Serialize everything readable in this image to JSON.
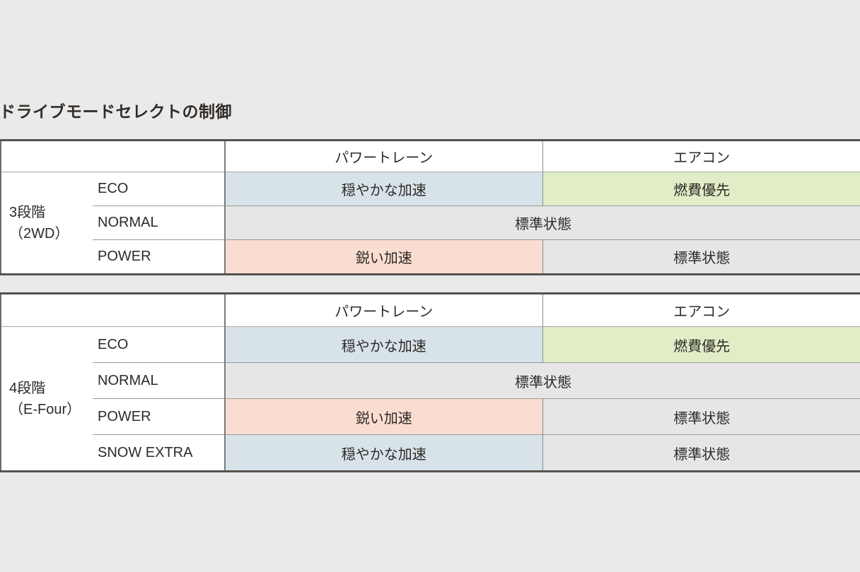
{
  "page": {
    "title": "ドライブモードセレクトの制御",
    "background_color": "#eaeaea"
  },
  "colors": {
    "cell_blue": "#d7e2e9",
    "cell_green": "#e0edc7",
    "cell_peach": "#f9ddd1",
    "cell_gray": "#e6e6e6",
    "outer_border": "#56524e",
    "text": "#2e2a27"
  },
  "tables": {
    "t2wd": {
      "group_line1": "3段階",
      "group_line2": "（2WD）",
      "columns": [
        "パワートレーン",
        "エアコン"
      ],
      "rows": {
        "eco": {
          "mode": "ECO",
          "powertrain": "穏やかな加速",
          "aircon": "燃費優先"
        },
        "normal": {
          "mode": "NORMAL",
          "merged": "標準状態"
        },
        "power": {
          "mode": "POWER",
          "powertrain": "鋭い加速",
          "aircon": "標準状態"
        }
      }
    },
    "tefour": {
      "group_line1": "4段階",
      "group_line2": "（E-Four）",
      "columns": [
        "パワートレーン",
        "エアコン"
      ],
      "rows": {
        "eco": {
          "mode": "ECO",
          "powertrain": "穏やかな加速",
          "aircon": "燃費優先"
        },
        "normal": {
          "mode": "NORMAL",
          "merged": "標準状態"
        },
        "power": {
          "mode": "POWER",
          "powertrain": "鋭い加速",
          "aircon": "標準状態"
        },
        "snow": {
          "mode": "SNOW EXTRA",
          "powertrain": "穏やかな加速",
          "aircon": "標準状態"
        }
      }
    }
  }
}
